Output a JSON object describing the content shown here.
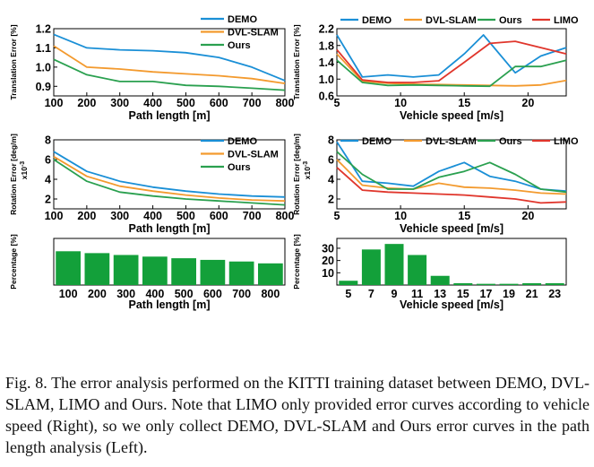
{
  "caption": "Fig. 8.   The error analysis performed on the KITTI training dataset between DEMO, DVL-SLAM, LIMO and Ours. Note that LIMO only provided error curves according to vehicle speed (Right), so we only collect DEMO, DVL-SLAM and Ours error curves in the path length analysis (Left).",
  "colors": {
    "DEMO": "#1a8fd6",
    "DVL-SLAM": "#f39a2e",
    "Ours": "#2aa04f",
    "LIMO": "#e0362c",
    "bar": "#13a03a"
  },
  "chart_data": [
    {
      "id": "tl",
      "type": "line",
      "xlabel": "Path length [m]",
      "ylabel": "Translation Error [%]",
      "xlim": [
        100,
        800
      ],
      "ylim": [
        0.85,
        1.2
      ],
      "xticks": [
        100,
        200,
        300,
        400,
        500,
        600,
        700,
        800
      ],
      "yticks": [
        0.9,
        1.0,
        1.1,
        1.2
      ],
      "ytick_labels": [
        "0.9",
        "1.0",
        "1.1",
        "1.2"
      ],
      "legend": "top-right",
      "series": [
        {
          "name": "DEMO",
          "x": [
            100,
            200,
            300,
            400,
            500,
            600,
            700,
            800
          ],
          "y": [
            1.17,
            1.1,
            1.09,
            1.085,
            1.075,
            1.05,
            1.0,
            0.93
          ]
        },
        {
          "name": "DVL-SLAM",
          "x": [
            100,
            200,
            300,
            400,
            500,
            600,
            700,
            800
          ],
          "y": [
            1.11,
            1.0,
            0.99,
            0.975,
            0.965,
            0.955,
            0.94,
            0.915
          ]
        },
        {
          "name": "Ours",
          "x": [
            100,
            200,
            300,
            400,
            500,
            600,
            700,
            800
          ],
          "y": [
            1.04,
            0.96,
            0.925,
            0.925,
            0.905,
            0.9,
            0.89,
            0.88
          ]
        }
      ]
    },
    {
      "id": "tr",
      "type": "line",
      "xlabel": "Vehicle speed [m/s]",
      "ylabel": "Translation Error [%]",
      "xlim": [
        5,
        23
      ],
      "ylim": [
        0.6,
        2.2
      ],
      "xticks": [
        5,
        10,
        15,
        20
      ],
      "yticks": [
        0.6,
        1.0,
        1.4,
        1.8,
        2.2
      ],
      "ytick_labels": [
        "0.6",
        "1.0",
        "1.4",
        "1.8",
        "2.2"
      ],
      "legend": "top",
      "series": [
        {
          "name": "DEMO",
          "x": [
            5,
            7,
            9,
            11,
            13,
            15,
            16.5,
            19,
            21,
            23
          ],
          "y": [
            2.05,
            1.05,
            1.1,
            1.05,
            1.1,
            1.6,
            2.05,
            1.15,
            1.55,
            1.75
          ]
        },
        {
          "name": "DVL-SLAM",
          "x": [
            5,
            7,
            9,
            11,
            13,
            15,
            17,
            19,
            21,
            23
          ],
          "y": [
            1.6,
            0.95,
            0.9,
            0.88,
            0.87,
            0.86,
            0.85,
            0.84,
            0.86,
            0.97
          ]
        },
        {
          "name": "Ours",
          "x": [
            5,
            7,
            9,
            11,
            13,
            15,
            17,
            19,
            21,
            23
          ],
          "y": [
            1.45,
            0.92,
            0.85,
            0.86,
            0.85,
            0.84,
            0.83,
            1.3,
            1.3,
            1.45
          ]
        },
        {
          "name": "LIMO",
          "x": [
            5,
            7,
            9,
            11,
            13,
            15,
            17,
            19,
            21,
            23
          ],
          "y": [
            1.7,
            0.98,
            0.92,
            0.92,
            0.96,
            1.4,
            1.85,
            1.9,
            1.75,
            1.6
          ]
        }
      ]
    },
    {
      "id": "rl",
      "type": "line",
      "xlabel": "Path length [m]",
      "ylabel": "Rotation Error [deg/m]",
      "yexp": "x10",
      "xlim": [
        100,
        800
      ],
      "ylim": [
        1,
        8
      ],
      "xticks": [
        100,
        200,
        300,
        400,
        500,
        600,
        700,
        800
      ],
      "yticks": [
        2,
        4,
        6,
        8
      ],
      "ytick_labels": [
        "2",
        "4",
        "6",
        "8"
      ],
      "legend": "top-right",
      "series": [
        {
          "name": "DEMO",
          "x": [
            100,
            200,
            300,
            400,
            500,
            600,
            700,
            800
          ],
          "y": [
            6.8,
            4.8,
            3.8,
            3.2,
            2.8,
            2.5,
            2.3,
            2.2
          ]
        },
        {
          "name": "DVL-SLAM",
          "x": [
            100,
            200,
            300,
            400,
            500,
            600,
            700,
            800
          ],
          "y": [
            6.3,
            4.3,
            3.3,
            2.8,
            2.4,
            2.1,
            1.9,
            1.8
          ]
        },
        {
          "name": "Ours",
          "x": [
            100,
            200,
            300,
            400,
            500,
            600,
            700,
            800
          ],
          "y": [
            6.0,
            3.8,
            2.7,
            2.3,
            2.0,
            1.8,
            1.6,
            1.4
          ]
        }
      ]
    },
    {
      "id": "rr",
      "type": "line",
      "xlabel": "Vehicle speed [m/s]",
      "ylabel": "Rotation Error [deg/m]",
      "yexp": "x10",
      "xlim": [
        5,
        23
      ],
      "ylim": [
        1,
        8
      ],
      "xticks": [
        5,
        10,
        15,
        20
      ],
      "yticks": [
        2,
        4,
        6,
        8
      ],
      "ytick_labels": [
        "2",
        "4",
        "6",
        "8"
      ],
      "legend": "top",
      "series": [
        {
          "name": "DEMO",
          "x": [
            5,
            7,
            9,
            11,
            13,
            15,
            17,
            19,
            21,
            23
          ],
          "y": [
            7.8,
            3.8,
            3.6,
            3.3,
            4.8,
            5.7,
            4.3,
            3.8,
            3.0,
            2.8
          ]
        },
        {
          "name": "DVL-SLAM",
          "x": [
            5,
            7,
            9,
            11,
            13,
            15,
            17,
            19,
            21,
            23
          ],
          "y": [
            6.0,
            3.4,
            3.1,
            3.0,
            3.6,
            3.2,
            3.1,
            2.9,
            2.6,
            2.5
          ]
        },
        {
          "name": "Ours",
          "x": [
            5,
            7,
            9,
            11,
            13,
            15,
            17,
            19,
            21,
            23
          ],
          "y": [
            6.8,
            4.5,
            3.0,
            3.0,
            4.2,
            4.8,
            5.7,
            4.5,
            3.0,
            2.7
          ]
        },
        {
          "name": "LIMO",
          "x": [
            5,
            7,
            9,
            11,
            13,
            15,
            17,
            19,
            21,
            23
          ],
          "y": [
            5.2,
            2.9,
            2.7,
            2.6,
            2.5,
            2.4,
            2.2,
            2.0,
            1.6,
            1.7
          ]
        }
      ]
    },
    {
      "id": "bl",
      "type": "bar",
      "xlabel": "Path length [m]",
      "ylabel": "Percentage [%]",
      "categories": [
        "100",
        "200",
        "300",
        "400",
        "500",
        "600",
        "700",
        "800"
      ],
      "values": [
        14.5,
        13.7,
        12.9,
        12.2,
        11.5,
        10.8,
        10.1,
        9.3
      ],
      "ylim": [
        0,
        20
      ],
      "yticks": [],
      "ytick_labels": []
    },
    {
      "id": "br",
      "type": "bar",
      "xlabel": "Vehicle speed [m/s]",
      "ylabel": "Percentage [%]",
      "categories": [
        "5",
        "7",
        "9",
        "11",
        "13",
        "15",
        "17",
        "19",
        "21",
        "23"
      ],
      "values": [
        3.5,
        29,
        33.5,
        24.5,
        7.5,
        1.5,
        1.0,
        1.0,
        1.5,
        1.5
      ],
      "ylim": [
        0,
        38
      ],
      "yticks": [
        10,
        20,
        30
      ],
      "ytick_labels": [
        "10",
        "20",
        "30"
      ]
    }
  ]
}
